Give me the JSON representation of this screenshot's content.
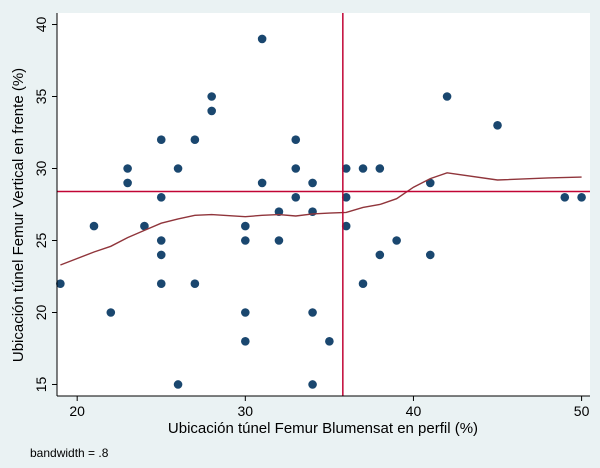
{
  "chart_data": {
    "type": "scatter",
    "title": "",
    "xlabel": "Ubicación túnel Femur Blumensat en perfil (%)",
    "ylabel": "Ubicación túnel Femur Vertical en frente (%)",
    "note": "bandwidth = .8",
    "xlim": [
      18.8,
      50.5
    ],
    "ylim": [
      14.2,
      40.8
    ],
    "x_ticks": [
      20,
      30,
      40,
      50
    ],
    "y_ticks": [
      15,
      20,
      25,
      30,
      35,
      40
    ],
    "grid": false,
    "legend": "none",
    "points": [
      [
        19,
        22
      ],
      [
        21,
        26
      ],
      [
        22,
        20
      ],
      [
        23,
        30
      ],
      [
        23,
        29
      ],
      [
        24,
        26
      ],
      [
        25,
        32
      ],
      [
        25,
        28
      ],
      [
        25,
        25
      ],
      [
        25,
        24
      ],
      [
        25,
        22
      ],
      [
        26,
        30
      ],
      [
        26,
        15
      ],
      [
        27,
        32
      ],
      [
        27,
        22
      ],
      [
        28,
        35
      ],
      [
        28,
        34
      ],
      [
        30,
        26
      ],
      [
        30,
        25
      ],
      [
        30,
        20
      ],
      [
        30,
        18
      ],
      [
        31,
        39
      ],
      [
        31,
        29
      ],
      [
        32,
        27
      ],
      [
        32,
        25
      ],
      [
        33,
        32
      ],
      [
        33,
        30
      ],
      [
        33,
        28
      ],
      [
        34,
        29
      ],
      [
        34,
        27
      ],
      [
        34,
        20
      ],
      [
        34,
        15
      ],
      [
        35,
        18
      ],
      [
        36,
        30
      ],
      [
        36,
        28
      ],
      [
        36,
        26
      ],
      [
        37,
        30
      ],
      [
        37,
        22
      ],
      [
        38,
        30
      ],
      [
        38,
        24
      ],
      [
        39,
        25
      ],
      [
        41,
        29
      ],
      [
        41,
        24
      ],
      [
        42,
        35
      ],
      [
        45,
        33
      ],
      [
        49,
        28
      ],
      [
        50,
        28
      ]
    ],
    "smooth_line": [
      [
        19,
        23.3
      ],
      [
        21,
        24.2
      ],
      [
        22,
        24.6
      ],
      [
        23,
        25.2
      ],
      [
        24,
        25.7
      ],
      [
        25,
        26.2
      ],
      [
        26,
        26.5
      ],
      [
        27,
        26.75
      ],
      [
        28,
        26.8
      ],
      [
        30,
        26.65
      ],
      [
        31,
        26.75
      ],
      [
        32,
        26.8
      ],
      [
        33,
        26.7
      ],
      [
        34,
        26.85
      ],
      [
        35,
        26.9
      ],
      [
        36,
        26.95
      ],
      [
        37,
        27.3
      ],
      [
        38,
        27.5
      ],
      [
        39,
        27.9
      ],
      [
        40,
        28.7
      ],
      [
        41,
        29.3
      ],
      [
        42,
        29.7
      ],
      [
        45,
        29.2
      ],
      [
        48,
        29.35
      ],
      [
        50,
        29.4
      ]
    ],
    "mean_x": 35.8,
    "mean_y": 28.4,
    "colors": {
      "background": "#eaf2f3",
      "plot_background": "#ffffff",
      "marker": "#1a476f",
      "smooth_line": "#90353b",
      "reference_line": "#c10534"
    }
  }
}
